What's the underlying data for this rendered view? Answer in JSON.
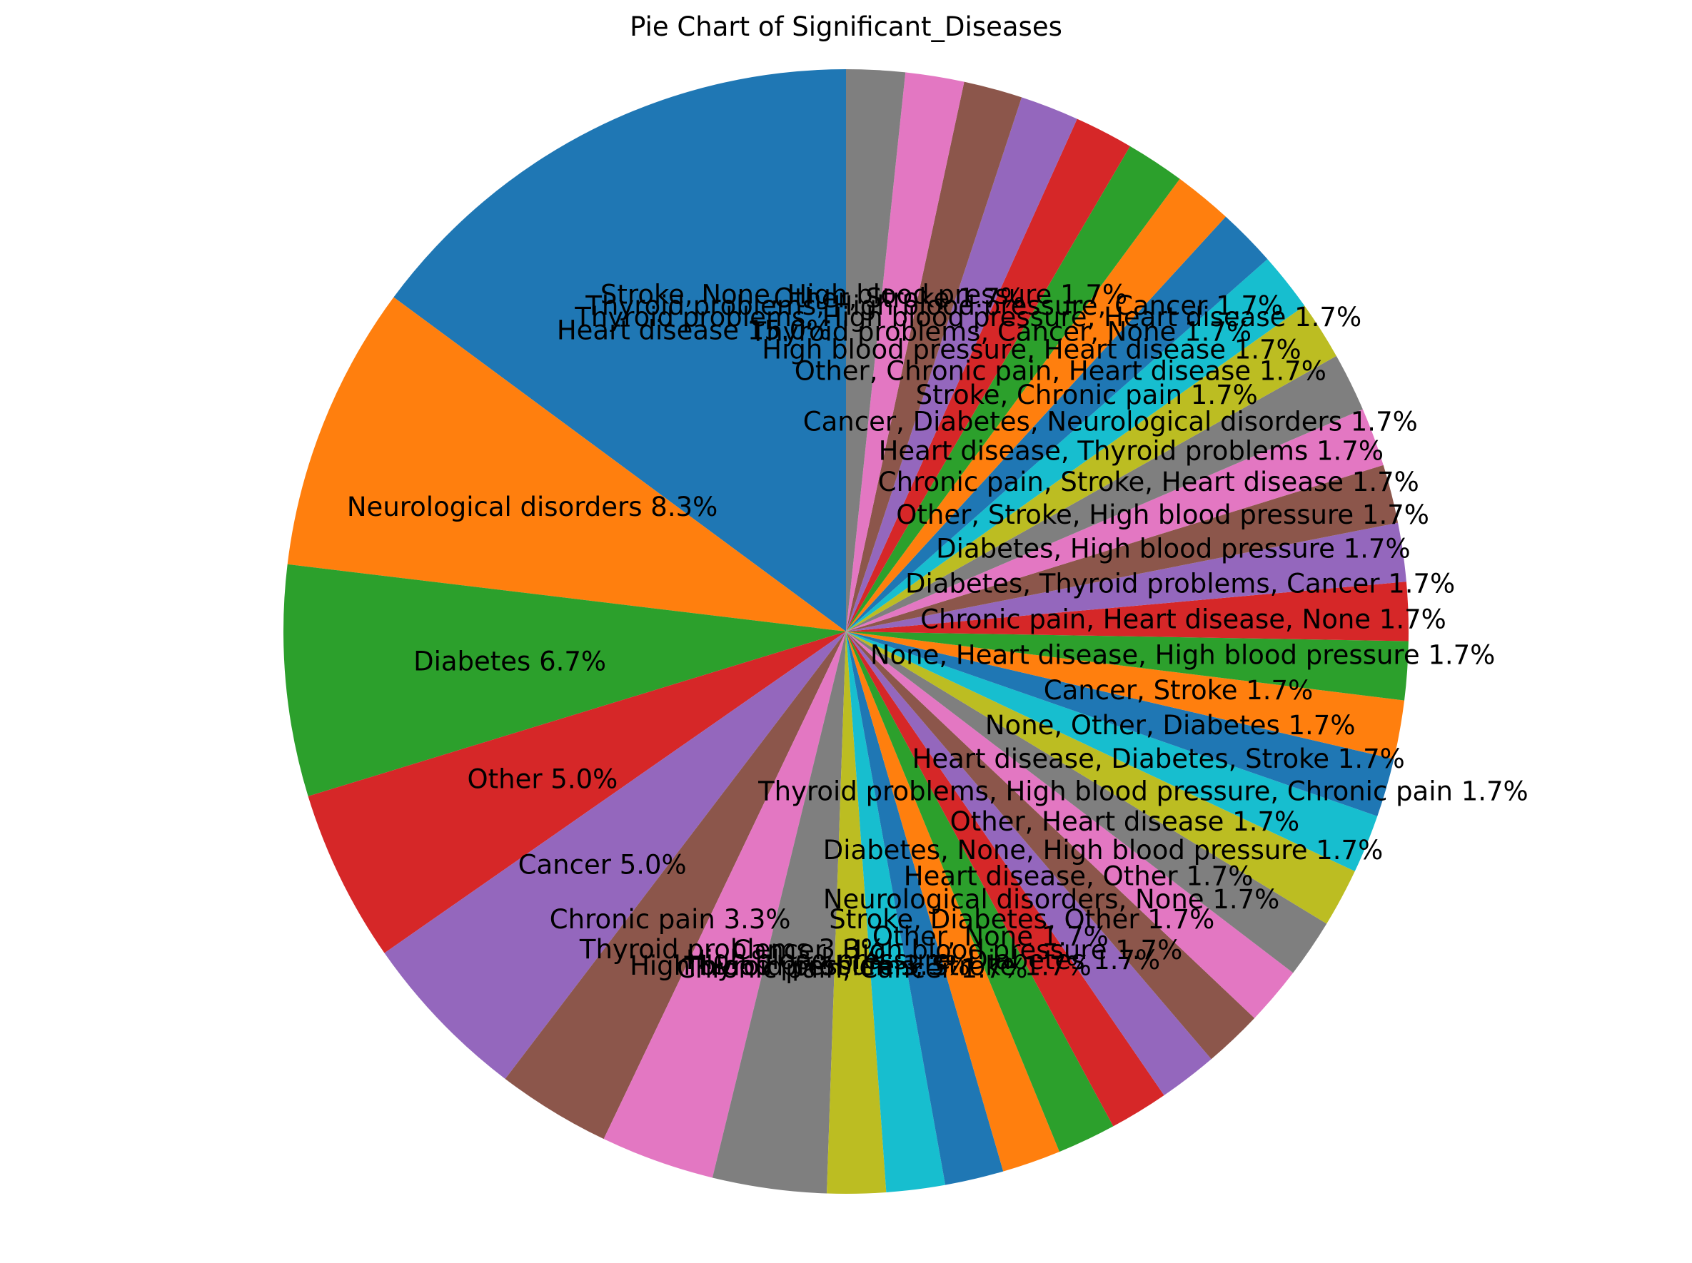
{
  "chart_data": {
    "type": "pie",
    "title": "Pie Chart of Significant_Diseases",
    "start_angle_deg": 90,
    "direction": "counterclockwise",
    "slices": [
      {
        "label": "Heart disease",
        "value": 15.0,
        "display": "Heart disease 15.0%",
        "color": "#1f77b4"
      },
      {
        "label": "Neurological disorders",
        "value": 8.3,
        "display": "Neurological disorders 8.3%",
        "color": "#ff7f0e"
      },
      {
        "label": "Diabetes",
        "value": 6.7,
        "display": "Diabetes 6.7%",
        "color": "#2ca02c"
      },
      {
        "label": "Other",
        "value": 5.0,
        "display": "Other 5.0%",
        "color": "#d62728"
      },
      {
        "label": "Cancer",
        "value": 5.0,
        "display": "Cancer 5.0%",
        "color": "#9467bd"
      },
      {
        "label": "Chronic pain",
        "value": 3.3,
        "display": "Chronic pain 3.3%",
        "color": "#8c564b"
      },
      {
        "label": "Thyroid problems",
        "value": 3.3,
        "display": "Thyroid problems 3.3%",
        "color": "#e377c2"
      },
      {
        "label": "High blood pressure",
        "value": 3.3,
        "display": "High blood pressure 3.3%",
        "color": "#7f7f7f"
      },
      {
        "label": "Chronic pain, Cancer",
        "value": 1.7,
        "display": "Chronic pain, Cancer 1.7%",
        "color": "#bcbd22"
      },
      {
        "label": "Thyroid problems, Stroke",
        "value": 1.7,
        "display": "Thyroid problems, Stroke 1.7%",
        "color": "#17becf"
      },
      {
        "label": "High blood pressure, Diabetes",
        "value": 1.7,
        "display": "High blood pressure, Diabetes 1.7%",
        "color": "#1f77b4"
      },
      {
        "label": "Cancer, High blood pressure",
        "value": 1.7,
        "display": "Cancer, High blood pressure 1.7%",
        "color": "#ff7f0e"
      },
      {
        "label": "Other, None",
        "value": 1.7,
        "display": "Other, None 1.7%",
        "color": "#2ca02c"
      },
      {
        "label": "Stroke, Diabetes, Other",
        "value": 1.7,
        "display": "Stroke, Diabetes, Other 1.7%",
        "color": "#d62728"
      },
      {
        "label": "Neurological disorders, None",
        "value": 1.7,
        "display": "Neurological disorders, None 1.7%",
        "color": "#9467bd"
      },
      {
        "label": "Heart disease, Other",
        "value": 1.7,
        "display": "Heart disease, Other 1.7%",
        "color": "#8c564b"
      },
      {
        "label": "Diabetes, None, High blood pressure",
        "value": 1.7,
        "display": "Diabetes, None, High blood pressure 1.7%",
        "color": "#e377c2"
      },
      {
        "label": "Other, Heart disease",
        "value": 1.7,
        "display": "Other, Heart disease 1.7%",
        "color": "#7f7f7f"
      },
      {
        "label": "Thyroid problems, High blood pressure, Chronic pain",
        "value": 1.7,
        "display": "Thyroid problems, High blood pressure, Chronic pain 1.7%",
        "color": "#bcbd22"
      },
      {
        "label": "Heart disease, Diabetes, Stroke",
        "value": 1.7,
        "display": "Heart disease, Diabetes, Stroke 1.7%",
        "color": "#17becf"
      },
      {
        "label": "None, Other, Diabetes",
        "value": 1.7,
        "display": "None, Other, Diabetes 1.7%",
        "color": "#1f77b4"
      },
      {
        "label": "Cancer, Stroke",
        "value": 1.7,
        "display": "Cancer, Stroke 1.7%",
        "color": "#ff7f0e"
      },
      {
        "label": "None, Heart disease, High blood pressure",
        "value": 1.7,
        "display": "None, Heart disease, High blood pressure 1.7%",
        "color": "#2ca02c"
      },
      {
        "label": "Chronic pain, Heart disease, None",
        "value": 1.7,
        "display": "Chronic pain, Heart disease, None 1.7%",
        "color": "#d62728"
      },
      {
        "label": "Diabetes, Thyroid problems, Cancer",
        "value": 1.7,
        "display": "Diabetes, Thyroid problems, Cancer 1.7%",
        "color": "#9467bd"
      },
      {
        "label": "Diabetes, High blood pressure",
        "value": 1.7,
        "display": "Diabetes, High blood pressure 1.7%",
        "color": "#8c564b"
      },
      {
        "label": "Other, Stroke, High blood pressure",
        "value": 1.7,
        "display": "Other, Stroke, High blood pressure 1.7%",
        "color": "#e377c2"
      },
      {
        "label": "Chronic pain, Stroke, Heart disease",
        "value": 1.7,
        "display": "Chronic pain, Stroke, Heart disease 1.7%",
        "color": "#7f7f7f"
      },
      {
        "label": "Heart disease, Thyroid problems",
        "value": 1.7,
        "display": "Heart disease, Thyroid problems 1.7%",
        "color": "#bcbd22"
      },
      {
        "label": "Cancer, Diabetes, Neurological disorders",
        "value": 1.7,
        "display": "Cancer, Diabetes, Neurological disorders 1.7%",
        "color": "#17becf"
      },
      {
        "label": "Stroke, Chronic pain",
        "value": 1.7,
        "display": "Stroke, Chronic pain 1.7%",
        "color": "#1f77b4"
      },
      {
        "label": "Other, Chronic pain, Heart disease",
        "value": 1.7,
        "display": "Other, Chronic pain, Heart disease 1.7%",
        "color": "#ff7f0e"
      },
      {
        "label": "High blood pressure, Heart disease",
        "value": 1.7,
        "display": "High blood pressure, Heart disease 1.7%",
        "color": "#2ca02c"
      },
      {
        "label": "Thyroid problems, Cancer, None",
        "value": 1.7,
        "display": "Thyroid problems, Cancer, None 1.7%",
        "color": "#d62728"
      },
      {
        "label": "Thyroid problems, High blood pressure, Heart disease",
        "value": 1.7,
        "display": "Thyroid problems, High blood pressure, Heart disease 1.7%",
        "color": "#9467bd"
      },
      {
        "label": "Thyroid problems, High blood pressure, Cancer",
        "value": 1.7,
        "display": "Thyroid problems, High blood pressure, Cancer 1.7%",
        "color": "#8c564b"
      },
      {
        "label": "Other, Stroke",
        "value": 1.7,
        "display": "Other, Stroke 1.7%",
        "color": "#e377c2"
      },
      {
        "label": "Stroke, None, High blood pressure",
        "value": 1.7,
        "display": "Stroke, None, High blood pressure 1.7%",
        "color": "#7f7f7f"
      }
    ]
  }
}
